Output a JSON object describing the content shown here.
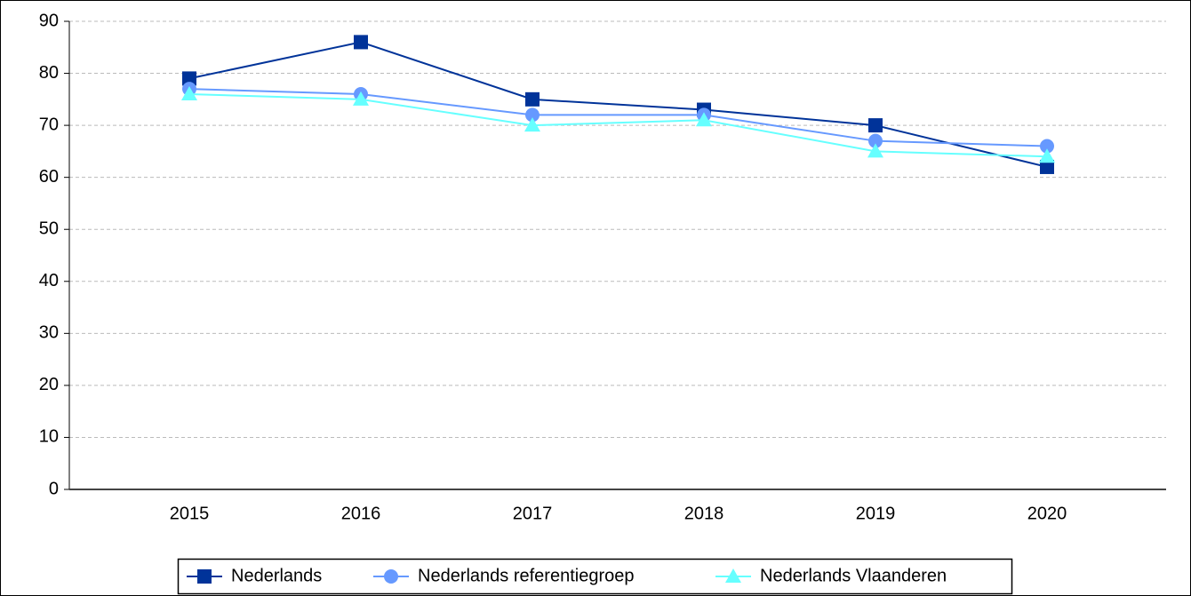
{
  "chart_data": {
    "type": "line",
    "categories": [
      "2015",
      "2016",
      "2017",
      "2018",
      "2019",
      "2020"
    ],
    "series": [
      {
        "name": "Nederlands",
        "color": "#003399",
        "marker": "square",
        "values": [
          79,
          86,
          75,
          73,
          70,
          62
        ]
      },
      {
        "name": "Nederlands referentiegroep",
        "color": "#6699ff",
        "marker": "circle",
        "values": [
          77,
          76,
          72,
          72,
          67,
          66
        ]
      },
      {
        "name": "Nederlands Vlaanderen",
        "color": "#66ffff",
        "marker": "triangle",
        "values": [
          76,
          75,
          70,
          71,
          65,
          64
        ]
      }
    ],
    "ylim": [
      0,
      90
    ],
    "yticks": [
      0,
      10,
      20,
      30,
      40,
      50,
      60,
      70,
      80,
      90
    ],
    "grid": true,
    "legend": "bottom"
  }
}
